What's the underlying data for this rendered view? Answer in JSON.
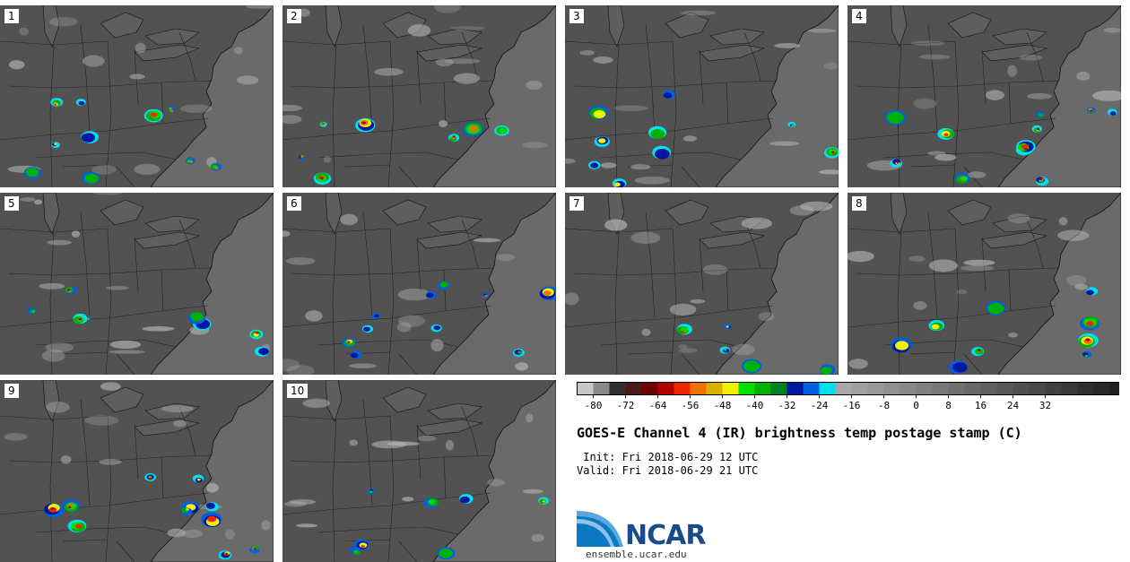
{
  "panels": [
    {
      "label": "1"
    },
    {
      "label": "2"
    },
    {
      "label": "3"
    },
    {
      "label": "4"
    },
    {
      "label": "5"
    },
    {
      "label": "6"
    },
    {
      "label": "7"
    },
    {
      "label": "8"
    },
    {
      "label": "9"
    },
    {
      "label": "10"
    }
  ],
  "colorbar": {
    "colors": [
      "#c8c8c8",
      "#8a8a8a",
      "#303030",
      "#4a1a1a",
      "#700000",
      "#b00000",
      "#f02800",
      "#f07000",
      "#d8b000",
      "#f0f000",
      "#00e000",
      "#00b000",
      "#008020",
      "#0018a0",
      "#0060e0",
      "#00e0f0",
      "#a8a8a8",
      "#a0a0a0",
      "#989898",
      "#909090",
      "#888888",
      "#808080",
      "#787878",
      "#707070",
      "#686868",
      "#606060",
      "#585858",
      "#505050",
      "#484848",
      "#404040",
      "#383838",
      "#303030",
      "#282828",
      "#202020"
    ],
    "ticks": [
      "-80",
      "-72",
      "-64",
      "-56",
      "-48",
      "-40",
      "-32",
      "-24",
      "-16",
      "-8",
      "0",
      "8",
      "16",
      "24",
      "32"
    ]
  },
  "title": "GOES-E Channel 4 (IR) brightness temp postage stamp (C)",
  "init": " Init: Fri 2018-06-29 12 UTC",
  "valid": "Valid: Fri 2018-06-29 21 UTC",
  "logo": {
    "text": "NCAR",
    "url": "ensemble.ucar.edu"
  }
}
